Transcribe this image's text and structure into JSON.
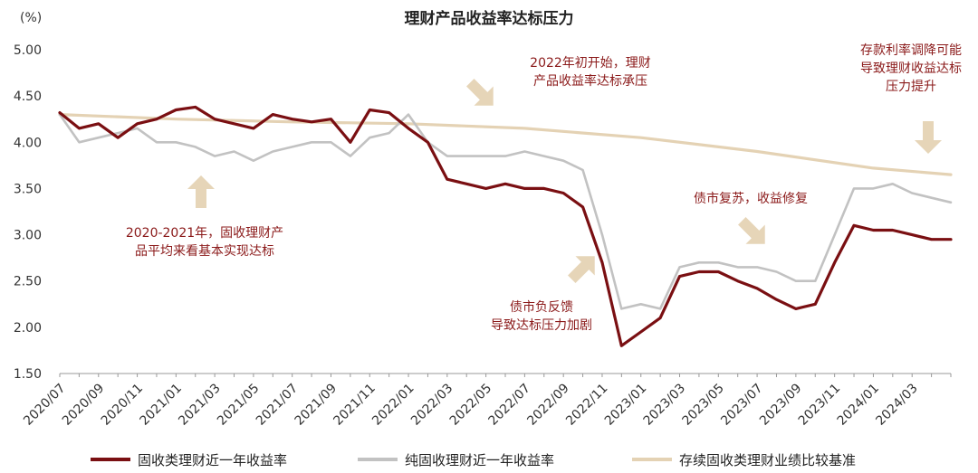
{
  "chart_data": {
    "type": "line",
    "title": "理财产品收益率达标压力",
    "y_unit": "(%)",
    "ylim": [
      1.5,
      5.0
    ],
    "yticks": [
      "5.00",
      "4.50",
      "4.00",
      "3.50",
      "3.00",
      "2.50",
      "2.00",
      "1.50"
    ],
    "xticks": [
      "2020/07",
      "2020/09",
      "2020/11",
      "2021/01",
      "2021/03",
      "2021/05",
      "2021/07",
      "2021/09",
      "2021/11",
      "2022/01",
      "2022/03",
      "2022/05",
      "2022/07",
      "2022/09",
      "2022/11",
      "2023/01",
      "2023/03",
      "2023/05",
      "2023/07",
      "2023/09",
      "2023/11",
      "2024/01",
      "2024/03"
    ],
    "grid": false,
    "legend_position": "bottom",
    "colors": {
      "series1": "#7a0f12",
      "series2": "#c2c2c2",
      "series3": "#e4d2b4",
      "annotation": "#8b1a1a",
      "arrow": "#e6d5b8"
    },
    "series": [
      {
        "name": "固收类理财近一年收益率",
        "points": [
          [
            "2020/07",
            4.32
          ],
          [
            "2020/08",
            4.15
          ],
          [
            "2020/09",
            4.2
          ],
          [
            "2020/10",
            4.05
          ],
          [
            "2020/11",
            4.2
          ],
          [
            "2020/12",
            4.25
          ],
          [
            "2021/01",
            4.35
          ],
          [
            "2021/02",
            4.38
          ],
          [
            "2021/03",
            4.25
          ],
          [
            "2021/04",
            4.2
          ],
          [
            "2021/05",
            4.15
          ],
          [
            "2021/06",
            4.3
          ],
          [
            "2021/07",
            4.25
          ],
          [
            "2021/08",
            4.22
          ],
          [
            "2021/09",
            4.25
          ],
          [
            "2021/10",
            4.0
          ],
          [
            "2021/11",
            4.35
          ],
          [
            "2021/12",
            4.32
          ],
          [
            "2022/01",
            4.15
          ],
          [
            "2022/02",
            4.0
          ],
          [
            "2022/03",
            3.6
          ],
          [
            "2022/04",
            3.55
          ],
          [
            "2022/05",
            3.5
          ],
          [
            "2022/06",
            3.55
          ],
          [
            "2022/07",
            3.5
          ],
          [
            "2022/08",
            3.5
          ],
          [
            "2022/09",
            3.45
          ],
          [
            "2022/10",
            3.3
          ],
          [
            "2022/11",
            2.7
          ],
          [
            "2022/12",
            1.8
          ],
          [
            "2023/01",
            1.95
          ],
          [
            "2023/02",
            2.1
          ],
          [
            "2023/03",
            2.55
          ],
          [
            "2023/04",
            2.6
          ],
          [
            "2023/05",
            2.6
          ],
          [
            "2023/06",
            2.5
          ],
          [
            "2023/07",
            2.42
          ],
          [
            "2023/08",
            2.3
          ],
          [
            "2023/09",
            2.2
          ],
          [
            "2023/10",
            2.25
          ],
          [
            "2023/11",
            2.7
          ],
          [
            "2023/12",
            3.1
          ],
          [
            "2024/01",
            3.05
          ],
          [
            "2024/02",
            3.05
          ],
          [
            "2024/03",
            3.0
          ],
          [
            "2024/04",
            2.95
          ],
          [
            "2024/05",
            2.95
          ]
        ]
      },
      {
        "name": "纯固收理财近一年收益率",
        "points": [
          [
            "2020/07",
            4.3
          ],
          [
            "2020/08",
            4.0
          ],
          [
            "2020/09",
            4.05
          ],
          [
            "2020/10",
            4.1
          ],
          [
            "2020/11",
            4.15
          ],
          [
            "2020/12",
            4.0
          ],
          [
            "2021/01",
            4.0
          ],
          [
            "2021/02",
            3.95
          ],
          [
            "2021/03",
            3.85
          ],
          [
            "2021/04",
            3.9
          ],
          [
            "2021/05",
            3.8
          ],
          [
            "2021/06",
            3.9
          ],
          [
            "2021/07",
            3.95
          ],
          [
            "2021/08",
            4.0
          ],
          [
            "2021/09",
            4.0
          ],
          [
            "2021/10",
            3.85
          ],
          [
            "2021/11",
            4.05
          ],
          [
            "2021/12",
            4.1
          ],
          [
            "2022/01",
            4.3
          ],
          [
            "2022/02",
            4.0
          ],
          [
            "2022/03",
            3.85
          ],
          [
            "2022/04",
            3.85
          ],
          [
            "2022/05",
            3.85
          ],
          [
            "2022/06",
            3.85
          ],
          [
            "2022/07",
            3.9
          ],
          [
            "2022/08",
            3.85
          ],
          [
            "2022/09",
            3.8
          ],
          [
            "2022/10",
            3.7
          ],
          [
            "2022/11",
            3.0
          ],
          [
            "2022/12",
            2.2
          ],
          [
            "2023/01",
            2.25
          ],
          [
            "2023/02",
            2.2
          ],
          [
            "2023/03",
            2.65
          ],
          [
            "2023/04",
            2.7
          ],
          [
            "2023/05",
            2.7
          ],
          [
            "2023/06",
            2.65
          ],
          [
            "2023/07",
            2.65
          ],
          [
            "2023/08",
            2.6
          ],
          [
            "2023/09",
            2.5
          ],
          [
            "2023/10",
            2.5
          ],
          [
            "2023/11",
            3.0
          ],
          [
            "2023/12",
            3.5
          ],
          [
            "2024/01",
            3.5
          ],
          [
            "2024/02",
            3.55
          ],
          [
            "2024/03",
            3.45
          ],
          [
            "2024/04",
            3.4
          ],
          [
            "2024/05",
            3.35
          ]
        ]
      },
      {
        "name": "存续固收类理财业绩比较基准",
        "points": [
          [
            "2020/07",
            4.3
          ],
          [
            "2021/01",
            4.25
          ],
          [
            "2021/07",
            4.22
          ],
          [
            "2022/01",
            4.2
          ],
          [
            "2022/07",
            4.15
          ],
          [
            "2023/01",
            4.05
          ],
          [
            "2023/07",
            3.9
          ],
          [
            "2024/01",
            3.72
          ],
          [
            "2024/05",
            3.65
          ]
        ]
      }
    ],
    "annotations": [
      {
        "lines": [
          "2022年初开始，理财",
          "产品收益率达标承压"
        ],
        "arrow": "down-right"
      },
      {
        "lines": [
          "存款利率调降可能",
          "导致理财收益达标",
          "压力提升"
        ],
        "arrow": "down"
      },
      {
        "lines": [
          "2020-2021年，固收理财产",
          "品平均来看基本实现达标"
        ],
        "arrow": "up"
      },
      {
        "lines": [
          "债市复苏，收益修复"
        ],
        "arrow": "down-right"
      },
      {
        "lines": [
          "债市负反馈",
          "导致达标压力加剧"
        ],
        "arrow": "up-right"
      }
    ]
  }
}
